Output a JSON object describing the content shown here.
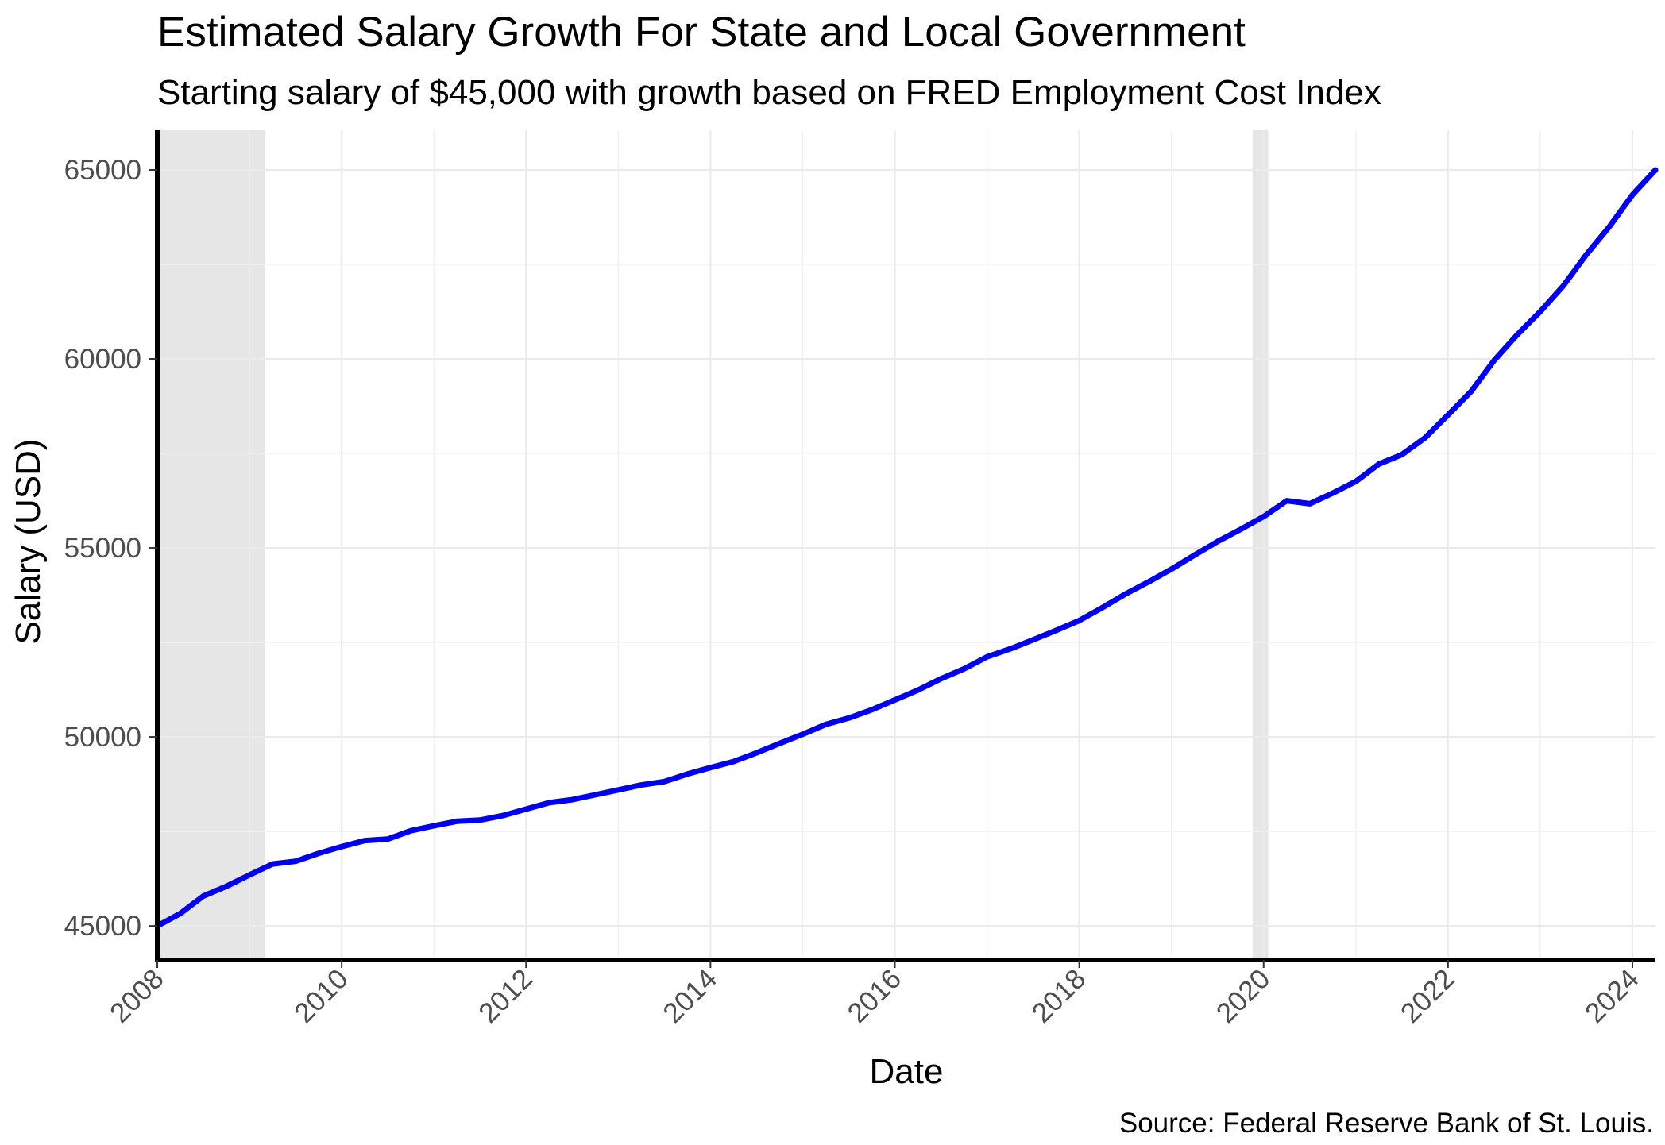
{
  "chart_data": {
    "type": "line",
    "title": "Estimated Salary Growth For State and Local Government",
    "subtitle": "Starting salary of $45,000 with growth based on FRED Employment Cost Index",
    "xlabel": "Date",
    "ylabel": "Salary (USD)",
    "caption": "Source: Federal Reserve Bank of St. Louis.",
    "xlim": [
      2008.0,
      2024.25
    ],
    "ylim": [
      44100,
      66050
    ],
    "x_ticks": [
      2008,
      2010,
      2012,
      2014,
      2016,
      2018,
      2020,
      2022,
      2024
    ],
    "x_tick_labels": [
      "2008",
      "2010",
      "2012",
      "2014",
      "2016",
      "2018",
      "2020",
      "2022",
      "2024"
    ],
    "y_ticks": [
      45000,
      50000,
      55000,
      60000,
      65000
    ],
    "y_tick_labels": [
      "45000",
      "50000",
      "55000",
      "60000",
      "65000"
    ],
    "grid": true,
    "line_color": "#0000ee",
    "recession_color": "#e6e6e6",
    "recessions": [
      {
        "start": 2008.0,
        "end": 2009.17
      },
      {
        "start": 2019.88,
        "end": 2020.05
      }
    ],
    "series": [
      {
        "name": "Estimated Salary",
        "x": [
          2008.0,
          2008.25,
          2008.5,
          2008.75,
          2009.0,
          2009.25,
          2009.5,
          2009.75,
          2010.0,
          2010.25,
          2010.5,
          2010.75,
          2011.0,
          2011.25,
          2011.5,
          2011.75,
          2012.0,
          2012.25,
          2012.5,
          2012.75,
          2013.0,
          2013.25,
          2013.5,
          2013.75,
          2014.0,
          2014.25,
          2014.5,
          2014.75,
          2015.0,
          2015.25,
          2015.5,
          2015.75,
          2016.0,
          2016.25,
          2016.5,
          2016.75,
          2017.0,
          2017.25,
          2017.5,
          2017.75,
          2018.0,
          2018.25,
          2018.5,
          2018.75,
          2019.0,
          2019.25,
          2019.5,
          2019.75,
          2020.0,
          2020.25,
          2020.5,
          2020.75,
          2021.0,
          2021.25,
          2021.5,
          2021.75,
          2022.0,
          2022.25,
          2022.5,
          2022.75,
          2023.0,
          2023.25,
          2023.5,
          2023.75,
          2024.0,
          2024.25
        ],
        "values": [
          45000,
          45330,
          45790,
          46050,
          46350,
          46640,
          46710,
          46920,
          47100,
          47260,
          47300,
          47520,
          47650,
          47770,
          47800,
          47920,
          48090,
          48260,
          48340,
          48470,
          48600,
          48730,
          48820,
          49020,
          49190,
          49350,
          49580,
          49830,
          50070,
          50330,
          50500,
          50720,
          50980,
          51240,
          51540,
          51800,
          52120,
          52330,
          52570,
          52820,
          53080,
          53420,
          53780,
          54100,
          54440,
          54810,
          55170,
          55490,
          55830,
          56250,
          56170,
          56450,
          56760,
          57220,
          57470,
          57910,
          58520,
          59140,
          59960,
          60640,
          61250,
          61930,
          62760,
          63500,
          64340,
          65000
        ]
      }
    ]
  }
}
